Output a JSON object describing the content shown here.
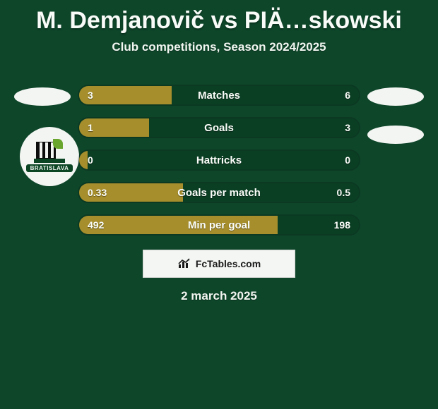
{
  "title": "M. Demjanovič vs PIÄ…skowski",
  "subtitle": "Club competitions, Season 2024/2025",
  "date": "2 march 2025",
  "branding": "FcTables.com",
  "left_player": {
    "oval_color": "#f3f5f2",
    "club_badge_text": "BRATISLAVA"
  },
  "right_player": {
    "oval_color": "#f3f5f2"
  },
  "bar_colors": {
    "left_fill": "#a68e2c",
    "right_fill": "#0b3f24",
    "row_border": "rgba(0,0,0,.18)",
    "text": "#fafdf9"
  },
  "rows": [
    {
      "label": "Matches",
      "left": "3",
      "right": "6",
      "left_pct": 33
    },
    {
      "label": "Goals",
      "left": "1",
      "right": "3",
      "left_pct": 25
    },
    {
      "label": "Hattricks",
      "left": "0",
      "right": "0",
      "left_pct": 3
    },
    {
      "label": "Goals per match",
      "left": "0.33",
      "right": "0.5",
      "left_pct": 37
    },
    {
      "label": "Min per goal",
      "left": "492",
      "right": "198",
      "left_pct": 71
    }
  ]
}
